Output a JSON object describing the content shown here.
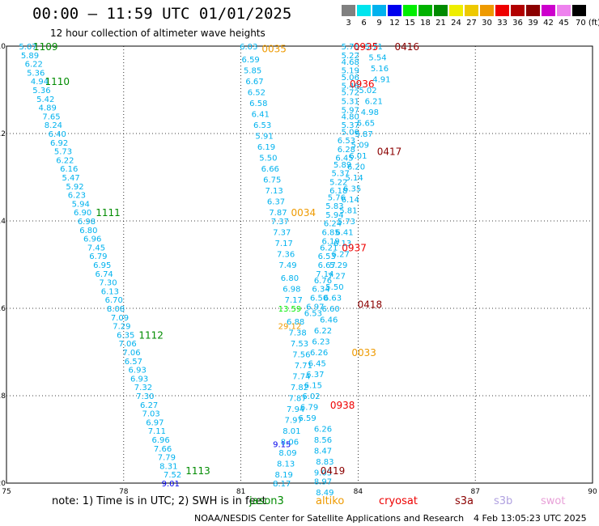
{
  "header": {
    "title": "00:00 – 11:59 UTC 01/01/2025",
    "subtitle": "12 hour collection of altimeter wave heights"
  },
  "colorbar": {
    "labels": [
      "3",
      "6",
      "9",
      "12",
      "15",
      "18",
      "21",
      "24",
      "27",
      "30",
      "33",
      "36",
      "39",
      "42",
      "45",
      "70 (ft)"
    ],
    "colors": [
      "#808080",
      "#00e5ee",
      "#00b2ee",
      "#0000ee",
      "#00ee00",
      "#00b200",
      "#008b00",
      "#eeee00",
      "#eec900",
      "#ee9a00",
      "#ee0000",
      "#b20000",
      "#8b0000",
      "#cd00cd",
      "#ee82ee",
      "#000000"
    ]
  },
  "footer": {
    "note": "note:  1) Time is in UTC;  2) SWH is in feet",
    "legend": [
      {
        "name": "jason3",
        "color": "#008b00"
      },
      {
        "name": "altiko",
        "color": "#ee9a00"
      },
      {
        "name": "cryosat",
        "color": "#ee0000"
      },
      {
        "name": "s3a",
        "color": "#8b0000"
      },
      {
        "name": "s3b",
        "color": "#b0a0e0"
      },
      {
        "name": "swot",
        "color": "#e8a0d8"
      }
    ],
    "credit": "NOAA/NESDIS Center for Satellite Applications and Research",
    "stamp": "4 Feb 13:05:23 UTC 2025"
  },
  "chart_data": {
    "type": "scatter",
    "xlim": [
      75,
      90
    ],
    "ylim": [
      -20,
      -10
    ],
    "xticks": [
      "75",
      "78",
      "81",
      "84",
      "87",
      "90"
    ],
    "yticks": [
      "-10",
      "-12",
      "-14",
      "-16",
      "-18",
      "-20"
    ],
    "grid": true,
    "tracks": [
      {
        "color": "#00b2ee",
        "points": [
          [
            75.55,
            -10.0,
            "5.07"
          ],
          [
            75.6,
            -10.2,
            "5.89"
          ],
          [
            75.7,
            -10.4,
            "6.22"
          ],
          [
            75.75,
            -10.6,
            "5.36"
          ],
          [
            75.85,
            -10.8,
            "4.94"
          ],
          [
            75.9,
            -11.0,
            "5.36"
          ],
          [
            76.0,
            -11.2,
            "5.42"
          ],
          [
            76.05,
            -11.4,
            "4.89"
          ],
          [
            76.15,
            -11.6,
            "7.65"
          ],
          [
            76.2,
            -11.8,
            "8.24"
          ],
          [
            76.3,
            -12.0,
            "6.40"
          ],
          [
            76.35,
            -12.2,
            "6.92"
          ],
          [
            76.45,
            -12.4,
            "5.73"
          ],
          [
            76.5,
            -12.6,
            "6.22"
          ],
          [
            76.6,
            -12.8,
            "6.16"
          ],
          [
            76.65,
            -13.0,
            "5.47"
          ],
          [
            76.75,
            -13.2,
            "5.92"
          ],
          [
            76.8,
            -13.4,
            "6.23"
          ],
          [
            76.9,
            -13.6,
            "5.94"
          ],
          [
            76.95,
            -13.8,
            "6.90"
          ],
          [
            77.05,
            -14.0,
            "6.98"
          ],
          [
            77.1,
            -14.2,
            "6.80"
          ],
          [
            77.2,
            -14.4,
            "6.96"
          ],
          [
            77.3,
            -14.6,
            "7.45"
          ],
          [
            77.35,
            -14.8,
            "6.79"
          ],
          [
            77.45,
            -15.0,
            "6.95"
          ],
          [
            77.5,
            -15.2,
            "6.74"
          ],
          [
            77.6,
            -15.4,
            "7.30"
          ],
          [
            77.65,
            -15.6,
            "6.13"
          ],
          [
            77.75,
            -15.8,
            "6.70"
          ],
          [
            77.8,
            -16.0,
            "8.08"
          ],
          [
            77.9,
            -16.2,
            "7.09"
          ],
          [
            77.95,
            -16.4,
            "7.29"
          ],
          [
            78.05,
            -16.6,
            "6.35"
          ],
          [
            78.1,
            -16.8,
            "7.06"
          ],
          [
            78.2,
            -17.0,
            "7.06"
          ],
          [
            78.25,
            -17.2,
            "6.57"
          ],
          [
            78.35,
            -17.4,
            "6.93"
          ],
          [
            78.4,
            -17.6,
            "6.93"
          ],
          [
            78.5,
            -17.8,
            "7.32"
          ],
          [
            78.55,
            -18.0,
            "7.30"
          ],
          [
            78.65,
            -18.2,
            "6.27"
          ],
          [
            78.7,
            -18.4,
            "7.03"
          ],
          [
            78.8,
            -18.6,
            "6.97"
          ],
          [
            78.85,
            -18.8,
            "7.11"
          ],
          [
            78.95,
            -19.0,
            "6.96"
          ],
          [
            79.0,
            -19.2,
            "7.66"
          ],
          [
            79.1,
            -19.4,
            "7.79"
          ],
          [
            79.15,
            -19.6,
            "8.31"
          ],
          [
            79.25,
            -19.8,
            "7.52"
          ]
        ]
      },
      {
        "color": "#00b2ee",
        "points": [
          [
            81.2,
            -10.0,
            "6.03"
          ],
          [
            81.25,
            -10.3,
            "6.59"
          ],
          [
            81.3,
            -10.55,
            "5.85"
          ],
          [
            81.35,
            -10.8,
            "6.67"
          ],
          [
            81.4,
            -11.05,
            "6.52"
          ],
          [
            81.45,
            -11.3,
            "6.58"
          ],
          [
            81.5,
            -11.55,
            "6.41"
          ],
          [
            81.55,
            -11.8,
            "6.53"
          ],
          [
            81.6,
            -12.05,
            "5.91"
          ],
          [
            81.65,
            -12.3,
            "6.19"
          ],
          [
            81.7,
            -12.55,
            "5.50"
          ],
          [
            81.75,
            -12.8,
            "6.66"
          ],
          [
            81.8,
            -13.05,
            "6.75"
          ],
          [
            81.85,
            -13.3,
            "7.13"
          ],
          [
            81.9,
            -13.55,
            "6.37"
          ],
          [
            81.95,
            -13.8,
            "7.87"
          ],
          [
            82.0,
            -14.0,
            "7.37"
          ],
          [
            82.05,
            -14.25,
            "7.37"
          ],
          [
            82.1,
            -14.5,
            "7.17"
          ],
          [
            82.15,
            -14.75,
            "7.36"
          ],
          [
            82.2,
            -15.0,
            "7.49"
          ],
          [
            82.25,
            -15.3,
            "6.80"
          ],
          [
            82.3,
            -15.55,
            "6.98"
          ],
          [
            82.35,
            -15.8,
            "7.17"
          ]
        ]
      },
      {
        "color": "#00b2ee",
        "points": [
          [
            83.8,
            -10.0,
            "5.75"
          ],
          [
            83.8,
            -10.2,
            "5.22"
          ],
          [
            83.8,
            -10.35,
            "4.68"
          ],
          [
            83.8,
            -10.55,
            "5.19"
          ],
          [
            83.8,
            -10.7,
            "5.06"
          ],
          [
            83.8,
            -10.9,
            "5.46"
          ],
          [
            83.8,
            -11.05,
            "5.72"
          ],
          [
            83.8,
            -11.25,
            "5.31"
          ],
          [
            83.8,
            -11.45,
            "5.97"
          ],
          [
            83.8,
            -11.6,
            "4.80"
          ],
          [
            83.8,
            -11.8,
            "5.37"
          ],
          [
            83.8,
            -11.95,
            "5.06"
          ],
          [
            83.7,
            -12.15,
            "6.53"
          ],
          [
            83.7,
            -12.35,
            "6.28"
          ],
          [
            83.65,
            -12.55,
            "6.45"
          ],
          [
            83.6,
            -12.7,
            "5.89"
          ],
          [
            83.55,
            -12.9,
            "5.37"
          ],
          [
            83.5,
            -13.1,
            "5.22"
          ],
          [
            83.5,
            -13.3,
            "6.18"
          ],
          [
            83.45,
            -13.45,
            "5.76"
          ],
          [
            83.4,
            -13.65,
            "5.83"
          ],
          [
            83.4,
            -13.85,
            "5.94"
          ],
          [
            83.35,
            -14.05,
            "6.24"
          ],
          [
            83.3,
            -14.25,
            "6.85"
          ],
          [
            83.3,
            -14.45,
            "6.19"
          ],
          [
            83.25,
            -14.6,
            "6.21"
          ],
          [
            83.2,
            -14.8,
            "6.53"
          ],
          [
            83.2,
            -15.0,
            "6.67"
          ],
          [
            83.15,
            -15.2,
            "7.14"
          ],
          [
            83.1,
            -15.35,
            "6.76"
          ],
          [
            83.05,
            -15.55,
            "6.34"
          ],
          [
            83.0,
            -15.75,
            "6.50"
          ],
          [
            82.9,
            -15.95,
            "6.97"
          ],
          [
            82.85,
            -16.1,
            "6.53"
          ]
        ]
      },
      {
        "color": "#00b2ee",
        "points": [
          [
            84.4,
            -10.0,
            "5.71"
          ],
          [
            84.5,
            -10.25,
            "5.54"
          ],
          [
            84.55,
            -10.5,
            "5.16"
          ],
          [
            84.6,
            -10.75,
            "4.91"
          ],
          [
            84.25,
            -11.0,
            "5.02"
          ],
          [
            84.4,
            -11.25,
            "6.21"
          ],
          [
            84.3,
            -11.5,
            "4.98"
          ],
          [
            84.2,
            -11.75,
            "5.65"
          ],
          [
            84.15,
            -12.0,
            "5.87"
          ],
          [
            84.05,
            -12.25,
            "5.09"
          ],
          [
            84.0,
            -12.5,
            "6.01"
          ],
          [
            83.95,
            -12.75,
            "6.20"
          ],
          [
            83.9,
            -13.0,
            "5.14"
          ],
          [
            83.85,
            -13.25,
            "6.35"
          ],
          [
            83.8,
            -13.5,
            "6.14"
          ],
          [
            83.75,
            -13.75,
            "5.81"
          ],
          [
            83.7,
            -14.0,
            "5.73"
          ],
          [
            83.65,
            -14.25,
            "6.41"
          ],
          [
            83.6,
            -14.5,
            "6.13"
          ],
          [
            83.55,
            -14.75,
            "6.27"
          ],
          [
            83.5,
            -15.0,
            "5.29"
          ],
          [
            83.45,
            -15.25,
            "7.27"
          ],
          [
            83.4,
            -15.5,
            "5.50"
          ],
          [
            83.35,
            -15.75,
            "6.63"
          ],
          [
            83.3,
            -16.0,
            "6.60"
          ],
          [
            83.25,
            -16.25,
            "6.46"
          ],
          [
            83.1,
            -16.5,
            "6.22"
          ],
          [
            83.05,
            -16.75,
            "6.23"
          ],
          [
            83.0,
            -17.0,
            "6.26"
          ],
          [
            82.95,
            -17.25,
            "6.45"
          ],
          [
            82.9,
            -17.5,
            "6.37"
          ],
          [
            82.85,
            -17.75,
            "6.15"
          ],
          [
            82.8,
            -18.0,
            "6.02"
          ],
          [
            82.75,
            -18.25,
            "6.79"
          ],
          [
            82.7,
            -18.5,
            "6.59"
          ],
          [
            83.1,
            -18.75,
            "6.26"
          ],
          [
            83.1,
            -19.0,
            "8.56"
          ],
          [
            83.1,
            -19.25,
            "8.47"
          ],
          [
            83.15,
            -19.5,
            "8.83"
          ],
          [
            83.1,
            -19.75,
            "9.03"
          ],
          [
            83.1,
            -19.95,
            "8.97"
          ],
          [
            83.15,
            -20.2,
            "8.49"
          ]
        ]
      },
      {
        "color": "#00b2ee",
        "points": [
          [
            82.4,
            -16.3,
            "6.88"
          ],
          [
            82.45,
            -16.55,
            "7.38"
          ],
          [
            82.5,
            -16.8,
            "7.53"
          ],
          [
            82.55,
            -17.05,
            "7.56"
          ],
          [
            82.6,
            -17.3,
            "7.71"
          ],
          [
            82.55,
            -17.55,
            "7.74"
          ],
          [
            82.5,
            -17.8,
            "7.82"
          ],
          [
            82.45,
            -18.05,
            "7.87"
          ],
          [
            82.4,
            -18.3,
            "7.94"
          ],
          [
            82.35,
            -18.55,
            "7.97"
          ],
          [
            82.3,
            -18.8,
            "8.01"
          ],
          [
            82.25,
            -19.05,
            "8.06"
          ],
          [
            82.2,
            -19.3,
            "8.09"
          ],
          [
            82.15,
            -19.55,
            "8.13"
          ],
          [
            82.1,
            -19.8,
            "8.19"
          ],
          [
            82.05,
            -20.0,
            "8.17"
          ]
        ]
      }
    ],
    "special_points": [
      {
        "x": 79.2,
        "y": -20.0,
        "label": "9.01",
        "color": "#0000ee"
      },
      {
        "x": 82.05,
        "y": -19.1,
        "label": "9.15",
        "color": "#0000ee"
      },
      {
        "x": 82.25,
        "y": -16.4,
        "label": "29.12",
        "color": "#ee9a00"
      },
      {
        "x": 82.25,
        "y": -16.0,
        "label": "13.59",
        "color": "#00ee00"
      }
    ],
    "time_labels": [
      {
        "x": 76.0,
        "y": -10.0,
        "label": "1109",
        "color": "#008b00"
      },
      {
        "x": 76.3,
        "y": -10.8,
        "label": "1110",
        "color": "#008b00"
      },
      {
        "x": 77.6,
        "y": -13.8,
        "label": "1111",
        "color": "#008b00"
      },
      {
        "x": 78.7,
        "y": -16.6,
        "label": "1112",
        "color": "#008b00"
      },
      {
        "x": 79.9,
        "y": -19.7,
        "label": "1113",
        "color": "#008b00"
      },
      {
        "x": 81.85,
        "y": -10.05,
        "label": "0035",
        "color": "#ee9a00"
      },
      {
        "x": 82.6,
        "y": -13.8,
        "label": "0034",
        "color": "#ee9a00"
      },
      {
        "x": 84.15,
        "y": -17.0,
        "label": "0033",
        "color": "#ee9a00"
      },
      {
        "x": 84.2,
        "y": -10.0,
        "label": "0935",
        "color": "#ee0000"
      },
      {
        "x": 84.1,
        "y": -10.85,
        "label": "0936",
        "color": "#ee0000"
      },
      {
        "x": 83.9,
        "y": -14.6,
        "label": "0937",
        "color": "#ee0000"
      },
      {
        "x": 83.6,
        "y": -18.2,
        "label": "0938",
        "color": "#ee0000"
      },
      {
        "x": 85.25,
        "y": -10.0,
        "label": "0416",
        "color": "#8b0000"
      },
      {
        "x": 84.8,
        "y": -12.4,
        "label": "0417",
        "color": "#8b0000"
      },
      {
        "x": 84.3,
        "y": -15.9,
        "label": "0418",
        "color": "#8b0000"
      },
      {
        "x": 83.35,
        "y": -19.7,
        "label": "0419",
        "color": "#8b0000"
      }
    ]
  }
}
